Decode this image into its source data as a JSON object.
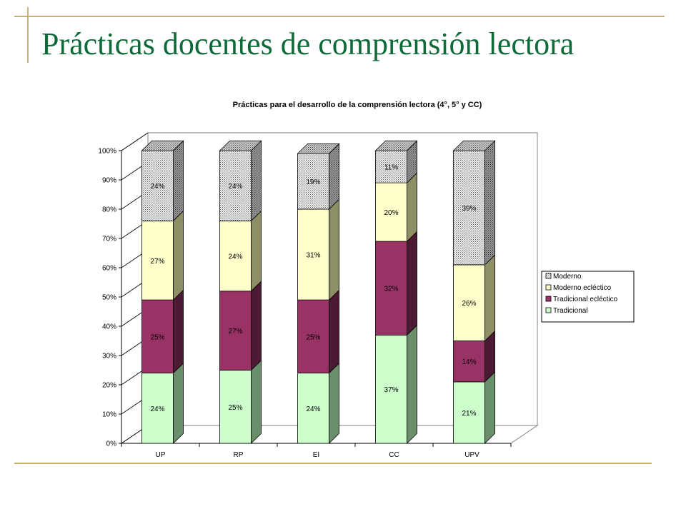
{
  "slide": {
    "title": "Prácticas docentes de comprensión lectora"
  },
  "chart_data": {
    "type": "bar",
    "stacked": true,
    "percent_stacked": true,
    "three_d": true,
    "title": "Prácticas para el desarrollo de la comprensión lectora (4°, 5° y CC)",
    "categories": [
      "UP",
      "RP",
      "EI",
      "CC",
      "UPV"
    ],
    "y_tick_labels": [
      "0%",
      "10%",
      "20%",
      "30%",
      "40%",
      "50%",
      "60%",
      "70%",
      "80%",
      "90%",
      "100%"
    ],
    "ylim": [
      0,
      100
    ],
    "grid": false,
    "legend_position": "right",
    "series": [
      {
        "name": "Tradicional",
        "values": [
          24,
          25,
          24,
          37,
          21
        ],
        "labels": [
          "24%",
          "25%",
          "24%",
          "37%",
          "21%"
        ],
        "color": "#ccffcc",
        "side_color": "#6b8f6b",
        "pattern": "none"
      },
      {
        "name": "Tradicional ecléctico",
        "values": [
          25,
          27,
          25,
          32,
          14
        ],
        "labels": [
          "25%",
          "27%",
          "25%",
          "32%",
          "14%"
        ],
        "color": "#993366",
        "side_color": "#4d1a33",
        "pattern": "none"
      },
      {
        "name": "Moderno ecléctico",
        "values": [
          27,
          24,
          31,
          20,
          26
        ],
        "labels": [
          "27%",
          "24%",
          "31%",
          "20%",
          "26%"
        ],
        "color": "#ffffcc",
        "side_color": "#8f8f66",
        "pattern": "none"
      },
      {
        "name": "Moderno",
        "values": [
          24,
          24,
          19,
          11,
          39
        ],
        "labels": [
          "24%",
          "24%",
          "19%",
          "11%",
          "39%"
        ],
        "color": "#e8e8e8",
        "side_color": "#777777",
        "pattern": "dots"
      }
    ],
    "legend_order": [
      "Moderno",
      "Moderno ecléctico",
      "Tradicional ecléctico",
      "Tradicional"
    ]
  }
}
